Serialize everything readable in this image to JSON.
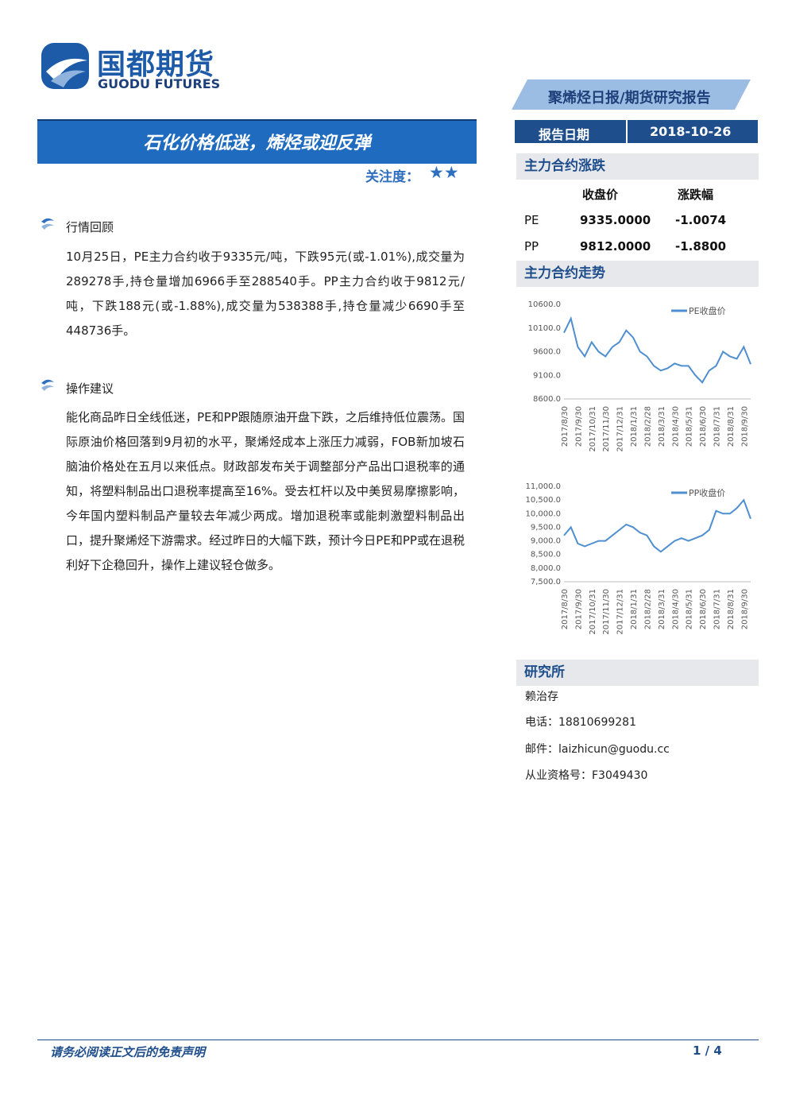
{
  "header": {
    "logo_cn": "国都期货",
    "logo_en": "GUODU FUTURES",
    "report_type": "聚烯烃日报/期货研究报告"
  },
  "title": "石化价格低迷，烯烃或迎反弹",
  "attention": {
    "label": "关注度：",
    "stars": "★★"
  },
  "report_date": {
    "label": "报告日期",
    "value": "2018-10-26"
  },
  "sections": [
    {
      "heading": "行情回顾",
      "body": "10月25日，PE主力合约收于9335元/吨，下跌95元(或-1.01%),成交量为289278手,持仓量增加6966手至288540手。PP主力合约收于9812元/吨，下跌188元(或-1.88%),成交量为538388手,持仓量减少6690手至448736手。"
    },
    {
      "heading": "操作建议",
      "body": "能化商品昨日全线低迷，PE和PP跟随原油开盘下跌，之后维持低位震荡。国际原油价格回落到9月初的水平，聚烯烃成本上涨压力减弱，FOB新加坡石脑油价格处在五月以来低点。财政部发布关于调整部分产品出口退税率的通知，将塑料制品出口退税率提高至16%。受去杠杆以及中美贸易摩擦影响，今年国内塑料制品产量较去年减少两成。增加退税率或能刺激塑料制品出口，提升聚烯烃下游需求。经过昨日的大幅下跌，预计今日PE和PP或在退税利好下企稳回升，操作上建议轻仓做多。"
    }
  ],
  "price_table": {
    "heading": "主力合约涨跌",
    "columns": [
      "收盘价",
      "涨跌幅"
    ],
    "rows": [
      [
        "PE",
        "9335.0000",
        "-1.0074"
      ],
      [
        "PP",
        "9812.0000",
        "-1.8800"
      ]
    ]
  },
  "trend_heading": "主力合约走势",
  "chart_data": [
    {
      "type": "line",
      "categories": [
        "2017/8/30",
        null,
        "2017/9/30",
        null,
        "2017/10/31",
        null,
        "2017/11/30",
        null,
        "2017/12/31",
        null,
        "2018/1/31",
        null,
        "2018/2/28",
        null,
        "2018/3/31",
        null,
        "2018/4/30",
        null,
        "2018/5/31",
        null,
        "2018/6/30",
        null,
        "2018/7/31",
        null,
        "2018/8/31",
        null,
        "2018/9/30",
        null
      ],
      "series": [
        {
          "name": "PE收盘价",
          "color": "#4f8fd0",
          "values": [
            10000,
            10300,
            9700,
            9500,
            9800,
            9600,
            9500,
            9700,
            9800,
            10050,
            9900,
            9600,
            9500,
            9300,
            9200,
            9250,
            9350,
            9300,
            9300,
            9100,
            8950,
            9200,
            9300,
            9600,
            9500,
            9450,
            9700,
            9335
          ]
        }
      ],
      "ylim": [
        8600,
        10600
      ],
      "yticks": [
        {
          "value": 8600,
          "label": "8600.0"
        },
        {
          "value": 9100,
          "label": "9100.0"
        },
        {
          "value": 9600,
          "label": "9600.0"
        },
        {
          "value": 10100,
          "label": "10100.0"
        },
        {
          "value": 10600,
          "label": "10600.0"
        }
      ],
      "grid": false,
      "legend": "upper right"
    },
    {
      "type": "line",
      "categories": [
        "2017/8/30",
        null,
        "2017/9/30",
        null,
        "2017/10/31",
        null,
        "2017/11/30",
        null,
        "2017/12/31",
        null,
        "2018/1/31",
        null,
        "2018/2/28",
        null,
        "2018/3/31",
        null,
        "2018/4/30",
        null,
        "2018/5/31",
        null,
        "2018/6/30",
        null,
        "2018/7/31",
        null,
        "2018/8/31",
        null,
        "2018/9/30",
        null
      ],
      "series": [
        {
          "name": "PP收盘价",
          "color": "#4f8fd0",
          "values": [
            9200,
            9500,
            8900,
            8800,
            8900,
            9000,
            9000,
            9200,
            9400,
            9600,
            9500,
            9300,
            9200,
            8800,
            8600,
            8800,
            9000,
            9100,
            9000,
            9100,
            9200,
            9400,
            10100,
            10000,
            10000,
            10200,
            10500,
            9812
          ]
        }
      ],
      "ylim": [
        7500,
        11000
      ],
      "yticks": [
        {
          "value": 7500,
          "label": "7,500.0"
        },
        {
          "value": 8000,
          "label": "8,000.0"
        },
        {
          "value": 8500,
          "label": "8,500.0"
        },
        {
          "value": 9000,
          "label": "9,000.0"
        },
        {
          "value": 9500,
          "label": "9,500.0"
        },
        {
          "value": 10000,
          "label": "10,000.0"
        },
        {
          "value": 10500,
          "label": "10,500.0"
        },
        {
          "value": 11000,
          "label": "11,000.0"
        }
      ],
      "grid": false,
      "legend": "upper right"
    }
  ],
  "research": {
    "heading": "研究所",
    "name": "赖治存",
    "phone": "电话：18810699281",
    "email": "邮件：laizhicun@guodu.cc",
    "license": "从业资格号：F3049430"
  },
  "footer": {
    "disclaimer": "请务必阅读正文后的免责声明",
    "page": "1 / 4"
  }
}
